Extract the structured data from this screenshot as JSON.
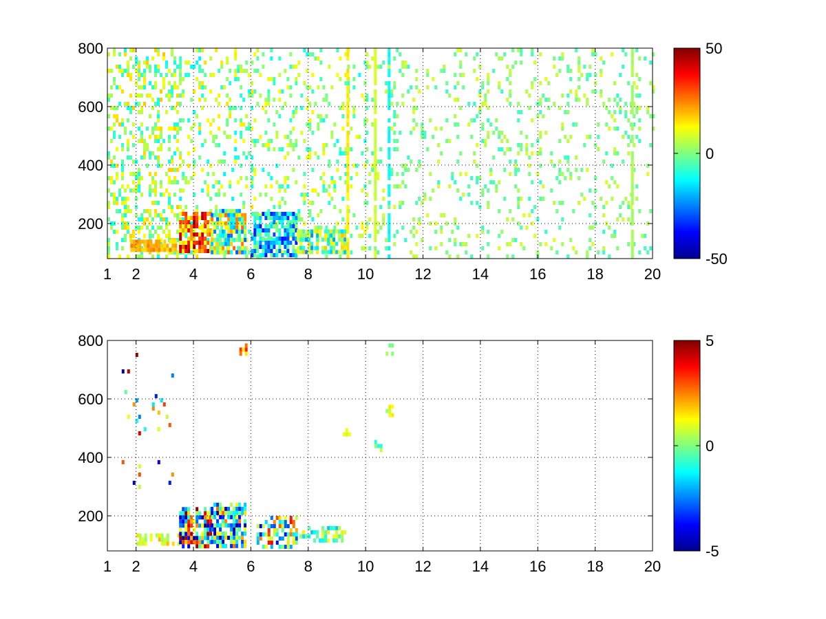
{
  "figure": {
    "background": "#ffffff",
    "colormap": "jet"
  },
  "chart_data": [
    {
      "type": "heatmap",
      "title": "",
      "xlabel": "",
      "ylabel": "",
      "xlim": [
        1,
        20
      ],
      "ylim": [
        80,
        800
      ],
      "x_ticks": [
        1,
        2,
        4,
        6,
        8,
        10,
        12,
        14,
        16,
        18,
        20
      ],
      "x_tick_labels": [
        "1",
        "2",
        "4",
        "6",
        "8",
        "10",
        "12",
        "14",
        "16",
        "18",
        "20"
      ],
      "y_ticks": [
        200,
        400,
        600,
        800
      ],
      "y_tick_labels": [
        "200",
        "400",
        "600",
        "800"
      ],
      "grid": true,
      "grid_style": "dotted",
      "colorbar": {
        "min": -50,
        "max": 50,
        "ticks": [
          50,
          0,
          -50
        ],
        "tick_labels": [
          "50",
          "0",
          "-50"
        ]
      },
      "regions": [
        {
          "x": [
            1.0,
            3.5
          ],
          "y": [
            80,
            800
          ],
          "density": 0.32,
          "value_range": [
            -12,
            18
          ]
        },
        {
          "x": [
            3.5,
            6.0
          ],
          "y": [
            80,
            800
          ],
          "density": 0.18,
          "value_range": [
            -14,
            16
          ]
        },
        {
          "x": [
            6.0,
            10.0
          ],
          "y": [
            80,
            800
          ],
          "density": 0.15,
          "value_range": [
            -12,
            14
          ]
        },
        {
          "x": [
            10.0,
            20.0
          ],
          "y": [
            80,
            800
          ],
          "density": 0.13,
          "value_range": [
            -8,
            10
          ]
        },
        {
          "x": [
            1.8,
            3.4
          ],
          "y": [
            105,
            145
          ],
          "density": 0.9,
          "value_range": [
            14,
            26
          ]
        },
        {
          "x": [
            3.5,
            4.6
          ],
          "y": [
            110,
            240
          ],
          "density": 0.85,
          "value_range": [
            10,
            48
          ]
        },
        {
          "x": [
            4.6,
            5.8
          ],
          "y": [
            100,
            250
          ],
          "density": 0.8,
          "value_range": [
            -30,
            28
          ]
        },
        {
          "x": [
            6.0,
            7.6
          ],
          "y": [
            95,
            240
          ],
          "density": 0.75,
          "value_range": [
            -36,
            2
          ]
        },
        {
          "x": [
            7.6,
            9.3
          ],
          "y": [
            100,
            180
          ],
          "density": 0.7,
          "value_range": [
            -24,
            18
          ]
        }
      ],
      "columns": [
        {
          "x": 9.38,
          "value": 14
        },
        {
          "x": 10.34,
          "value": 8
        },
        {
          "x": 10.82,
          "value": -12
        },
        {
          "x": 19.3,
          "value": 4
        }
      ]
    },
    {
      "type": "heatmap",
      "title": "",
      "xlabel": "",
      "ylabel": "",
      "xlim": [
        1,
        20
      ],
      "ylim": [
        80,
        800
      ],
      "x_ticks": [
        1,
        2,
        4,
        6,
        8,
        10,
        12,
        14,
        16,
        18,
        20
      ],
      "x_tick_labels": [
        "1",
        "2",
        "4",
        "6",
        "8",
        "10",
        "12",
        "14",
        "16",
        "18",
        "20"
      ],
      "y_ticks": [
        200,
        400,
        600,
        800
      ],
      "y_tick_labels": [
        "200",
        "400",
        "600",
        "800"
      ],
      "grid": true,
      "grid_style": "dotted",
      "colorbar": {
        "min": -5,
        "max": 5,
        "ticks": [
          5,
          0,
          -5
        ],
        "tick_labels": [
          "5",
          "0",
          "-5"
        ]
      },
      "regions": [
        {
          "x": [
            1.5,
            3.4
          ],
          "y": [
            300,
            800
          ],
          "density": 0.03,
          "value_range": [
            -5,
            5
          ]
        },
        {
          "x": [
            2.0,
            3.5
          ],
          "y": [
            105,
            140
          ],
          "density": 0.5,
          "value_range": [
            0,
            2
          ]
        },
        {
          "x": [
            3.5,
            4.6
          ],
          "y": [
            100,
            230
          ],
          "density": 0.75,
          "value_range": [
            -5,
            5
          ]
        },
        {
          "x": [
            4.6,
            5.8
          ],
          "y": [
            100,
            245
          ],
          "density": 0.7,
          "value_range": [
            -5,
            3
          ]
        },
        {
          "x": [
            6.2,
            7.6
          ],
          "y": [
            100,
            200
          ],
          "density": 0.6,
          "value_range": [
            -4,
            4
          ]
        },
        {
          "x": [
            7.6,
            9.3
          ],
          "y": [
            110,
            165
          ],
          "density": 0.5,
          "value_range": [
            -2,
            1.5
          ]
        },
        {
          "x": [
            9.2,
            9.4
          ],
          "y": [
            470,
            500
          ],
          "density": 0.8,
          "value_range": [
            0.5,
            1.5
          ]
        },
        {
          "x": [
            10.3,
            10.5
          ],
          "y": [
            420,
            460
          ],
          "density": 0.6,
          "value_range": [
            -1,
            1
          ]
        },
        {
          "x": [
            10.7,
            10.9
          ],
          "y": [
            550,
            580
          ],
          "density": 0.6,
          "value_range": [
            0,
            1.5
          ]
        },
        {
          "x": [
            10.7,
            10.9
          ],
          "y": [
            760,
            790
          ],
          "density": 0.5,
          "value_range": [
            -1,
            1
          ]
        },
        {
          "x": [
            5.6,
            5.8
          ],
          "y": [
            750,
            790
          ],
          "density": 0.5,
          "value_range": [
            1,
            4
          ]
        }
      ],
      "columns": []
    }
  ]
}
